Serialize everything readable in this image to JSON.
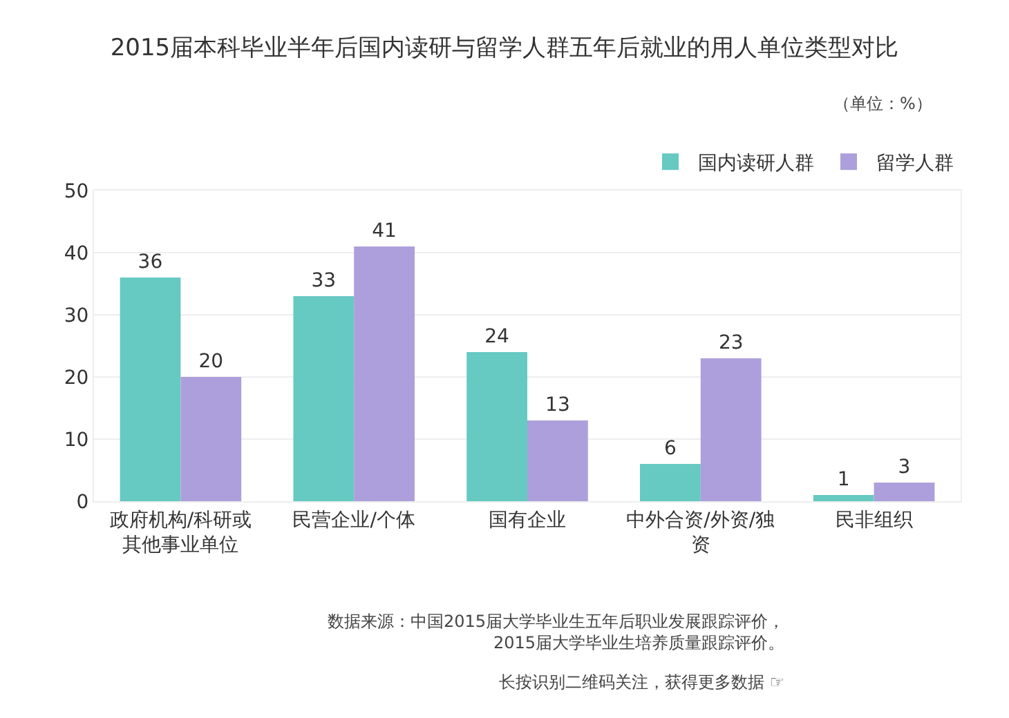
{
  "chart_data": {
    "type": "bar",
    "title": "2015届本科毕业半年后国内读研与留学人群五年后就业的用人单位类型对比",
    "categories": [
      "政府机构/科研或其他事业单位",
      "民营企业/个体",
      "国有企业",
      "中外合资/外资/独资",
      "民非组织"
    ],
    "series": [
      {
        "name": "国内读研人群",
        "color": "#66c9c2",
        "values": [
          36,
          33,
          24,
          6,
          1
        ]
      },
      {
        "name": "留学人群",
        "color": "#ad9fdb",
        "values": [
          20,
          41,
          13,
          23,
          3
        ]
      }
    ],
    "ylim": [
      0,
      50
    ],
    "yticks": [
      0,
      10,
      20,
      30,
      40,
      50
    ],
    "grid": "y",
    "legend": "top right",
    "data_labels": true,
    "annotations": [
      "（单位：%）",
      "数据来源：中国2015届大学毕业生五年后职业发展跟踪评价，2015届大学毕业生培养质量跟踪评价。",
      "长按识别二维码关注，获得更多数据 ☞"
    ]
  }
}
